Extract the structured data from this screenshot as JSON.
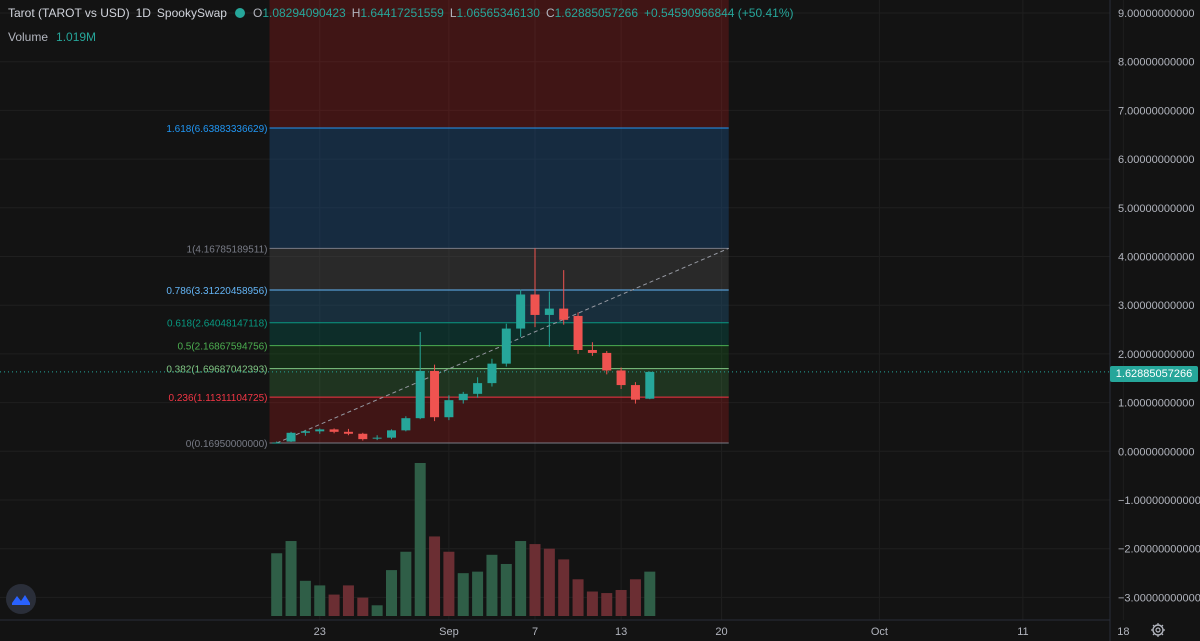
{
  "legend": {
    "symbol": "Tarot (TAROT vs USD)",
    "interval": "1D",
    "exchange": "SpookySwap",
    "open_key": "O",
    "open": "1.08294090423",
    "high_key": "H",
    "high": "1.64417251559",
    "low_key": "L",
    "low": "1.06565346130",
    "close_key": "C",
    "close": "1.62885057266",
    "change": "+0.54590966844 (+50.41%)"
  },
  "volume": {
    "label": "Volume",
    "value": "1.019M"
  },
  "current_price_label": "1.62885057266",
  "colors": {
    "up": "#26a69a",
    "down": "#ef5350",
    "background": "#131313",
    "grid": "#1f1f1f"
  },
  "price_axis": {
    "ticks": [
      {
        "value": 9,
        "label": "9.00000000000"
      },
      {
        "value": 8,
        "label": "8.00000000000"
      },
      {
        "value": 7,
        "label": "7.00000000000"
      },
      {
        "value": 6,
        "label": "6.00000000000"
      },
      {
        "value": 5,
        "label": "5.00000000000"
      },
      {
        "value": 4,
        "label": "4.00000000000"
      },
      {
        "value": 3,
        "label": "3.00000000000"
      },
      {
        "value": 2,
        "label": "2.00000000000"
      },
      {
        "value": 1,
        "label": "1.00000000000"
      },
      {
        "value": 0,
        "label": "0.00000000000"
      },
      {
        "value": -1,
        "label": "−1.00000000000"
      },
      {
        "value": -2,
        "label": "−2.00000000000"
      },
      {
        "value": -3,
        "label": "−3.00000000000"
      }
    ]
  },
  "time_axis": {
    "ticks": [
      {
        "day": 23,
        "label": "23"
      },
      {
        "day": 32,
        "label": "Sep"
      },
      {
        "day": 38,
        "label": "7"
      },
      {
        "day": 44,
        "label": "13"
      },
      {
        "day": 51,
        "label": "20"
      },
      {
        "day": 62,
        "label": "Oct"
      },
      {
        "day": 72,
        "label": "11"
      },
      {
        "day": 79,
        "label": "18"
      }
    ]
  },
  "chart_data": {
    "type": "candlestick",
    "x_unit": "day (Aug 1 = 1)",
    "ylim": [
      -3.4,
      9.3
    ],
    "candles": [
      {
        "d": 20,
        "o": 0.17,
        "h": 0.2,
        "l": 0.16,
        "c": 0.18
      },
      {
        "d": 21,
        "o": 0.2,
        "h": 0.4,
        "l": 0.19,
        "c": 0.38
      },
      {
        "d": 22,
        "o": 0.38,
        "h": 0.44,
        "l": 0.32,
        "c": 0.41
      },
      {
        "d": 23,
        "o": 0.41,
        "h": 0.47,
        "l": 0.36,
        "c": 0.45
      },
      {
        "d": 24,
        "o": 0.45,
        "h": 0.47,
        "l": 0.37,
        "c": 0.4
      },
      {
        "d": 25,
        "o": 0.4,
        "h": 0.46,
        "l": 0.33,
        "c": 0.36
      },
      {
        "d": 26,
        "o": 0.36,
        "h": 0.38,
        "l": 0.22,
        "c": 0.25
      },
      {
        "d": 27,
        "o": 0.26,
        "h": 0.33,
        "l": 0.23,
        "c": 0.28
      },
      {
        "d": 28,
        "o": 0.28,
        "h": 0.45,
        "l": 0.25,
        "c": 0.43
      },
      {
        "d": 29,
        "o": 0.43,
        "h": 0.72,
        "l": 0.41,
        "c": 0.68
      },
      {
        "d": 30,
        "o": 0.68,
        "h": 2.45,
        "l": 0.66,
        "c": 1.65
      },
      {
        "d": 31,
        "o": 1.65,
        "h": 1.78,
        "l": 0.62,
        "c": 0.7
      },
      {
        "d": 32,
        "o": 0.7,
        "h": 1.15,
        "l": 0.64,
        "c": 1.05
      },
      {
        "d": 33,
        "o": 1.05,
        "h": 1.22,
        "l": 0.98,
        "c": 1.18
      },
      {
        "d": 34,
        "o": 1.18,
        "h": 1.52,
        "l": 1.1,
        "c": 1.4
      },
      {
        "d": 35,
        "o": 1.4,
        "h": 1.9,
        "l": 1.33,
        "c": 1.8
      },
      {
        "d": 36,
        "o": 1.8,
        "h": 2.62,
        "l": 1.74,
        "c": 2.52
      },
      {
        "d": 37,
        "o": 2.52,
        "h": 3.32,
        "l": 2.35,
        "c": 3.22
      },
      {
        "d": 38,
        "o": 3.22,
        "h": 4.17,
        "l": 2.55,
        "c": 2.8
      },
      {
        "d": 39,
        "o": 2.8,
        "h": 3.28,
        "l": 2.15,
        "c": 2.93
      },
      {
        "d": 40,
        "o": 2.93,
        "h": 3.72,
        "l": 2.6,
        "c": 2.7
      },
      {
        "d": 41,
        "o": 2.78,
        "h": 2.85,
        "l": 2.0,
        "c": 2.08
      },
      {
        "d": 42,
        "o": 2.08,
        "h": 2.24,
        "l": 1.96,
        "c": 2.02
      },
      {
        "d": 43,
        "o": 2.02,
        "h": 2.06,
        "l": 1.58,
        "c": 1.66
      },
      {
        "d": 44,
        "o": 1.66,
        "h": 1.72,
        "l": 1.28,
        "c": 1.36
      },
      {
        "d": 45,
        "o": 1.36,
        "h": 1.42,
        "l": 0.98,
        "c": 1.06
      },
      {
        "d": 46,
        "o": 1.08,
        "h": 1.64,
        "l": 1.07,
        "c": 1.63
      }
    ],
    "volume_bars": [
      {
        "d": 20,
        "v": 0.41,
        "up": true
      },
      {
        "d": 21,
        "v": 0.49,
        "up": true
      },
      {
        "d": 22,
        "v": 0.23,
        "up": true
      },
      {
        "d": 23,
        "v": 0.2,
        "up": true
      },
      {
        "d": 24,
        "v": 0.14,
        "up": false
      },
      {
        "d": 25,
        "v": 0.2,
        "up": false
      },
      {
        "d": 26,
        "v": 0.12,
        "up": false
      },
      {
        "d": 27,
        "v": 0.07,
        "up": true
      },
      {
        "d": 28,
        "v": 0.3,
        "up": true
      },
      {
        "d": 29,
        "v": 0.42,
        "up": true
      },
      {
        "d": 30,
        "v": 1.0,
        "up": true
      },
      {
        "d": 31,
        "v": 0.52,
        "up": false
      },
      {
        "d": 32,
        "v": 0.42,
        "up": false
      },
      {
        "d": 33,
        "v": 0.28,
        "up": true
      },
      {
        "d": 34,
        "v": 0.29,
        "up": true
      },
      {
        "d": 35,
        "v": 0.4,
        "up": true
      },
      {
        "d": 36,
        "v": 0.34,
        "up": true
      },
      {
        "d": 37,
        "v": 0.49,
        "up": true
      },
      {
        "d": 38,
        "v": 0.47,
        "up": false
      },
      {
        "d": 39,
        "v": 0.44,
        "up": false
      },
      {
        "d": 40,
        "v": 0.37,
        "up": false
      },
      {
        "d": 41,
        "v": 0.24,
        "up": false
      },
      {
        "d": 42,
        "v": 0.16,
        "up": false
      },
      {
        "d": 43,
        "v": 0.15,
        "up": false
      },
      {
        "d": 44,
        "v": 0.17,
        "up": false
      },
      {
        "d": 45,
        "v": 0.24,
        "up": false
      },
      {
        "d": 46,
        "v": 0.29,
        "up": true
      }
    ],
    "fibonacci": {
      "start_day": 19.5,
      "end_day": 51.5,
      "trend_from": [
        20,
        0.1695
      ],
      "trend_to": [
        51.5,
        4.16785189511
      ],
      "levels": [
        {
          "ratio": "0",
          "value": 0.1695,
          "label": "0(0.16950000000)",
          "color": "#787b86"
        },
        {
          "ratio": "0.236",
          "value": 1.11311104725,
          "label": "0.236(1.11311104725)",
          "color": "#f23645"
        },
        {
          "ratio": "0.382",
          "value": 1.69687042393,
          "label": "0.382(1.69687042393)",
          "color": "#81c784"
        },
        {
          "ratio": "0.5",
          "value": 2.16867594756,
          "label": "0.5(2.16867594756)",
          "color": "#4caf50"
        },
        {
          "ratio": "0.618",
          "value": 2.64048147118,
          "label": "0.618(2.64048147118)",
          "color": "#089981"
        },
        {
          "ratio": "0.786",
          "value": 3.31220458956,
          "label": "0.786(3.31220458956)",
          "color": "#64b5f6"
        },
        {
          "ratio": "1",
          "value": 4.16785189511,
          "label": "1(4.16785189511)",
          "color": "#787b86"
        },
        {
          "ratio": "1.618",
          "value": 6.63883336629,
          "label": "1.618(6.63883336629)",
          "color": "#2196f3"
        }
      ],
      "bands": [
        {
          "from": 0.1695,
          "to": 1.11311104725,
          "fill": "#b71c1c",
          "opacity": 0.28
        },
        {
          "from": 1.11311104725,
          "to": 1.69687042393,
          "fill": "#4caf50",
          "opacity": 0.22
        },
        {
          "from": 1.69687042393,
          "to": 2.16867594756,
          "fill": "#1b5e20",
          "opacity": 0.35
        },
        {
          "from": 2.16867594756,
          "to": 2.64048147118,
          "fill": "#00695c",
          "opacity": 0.3
        },
        {
          "from": 2.64048147118,
          "to": 3.31220458956,
          "fill": "#1e4f6e",
          "opacity": 0.45
        },
        {
          "from": 3.31220458956,
          "to": 4.16785189511,
          "fill": "#4a4a4a",
          "opacity": 0.4
        },
        {
          "from": 4.16785189511,
          "to": 6.63883336629,
          "fill": "#1a4a78",
          "opacity": 0.45
        },
        {
          "from": 6.63883336629,
          "to": 9.3,
          "fill": "#b71c1c",
          "opacity": 0.28
        }
      ]
    }
  }
}
